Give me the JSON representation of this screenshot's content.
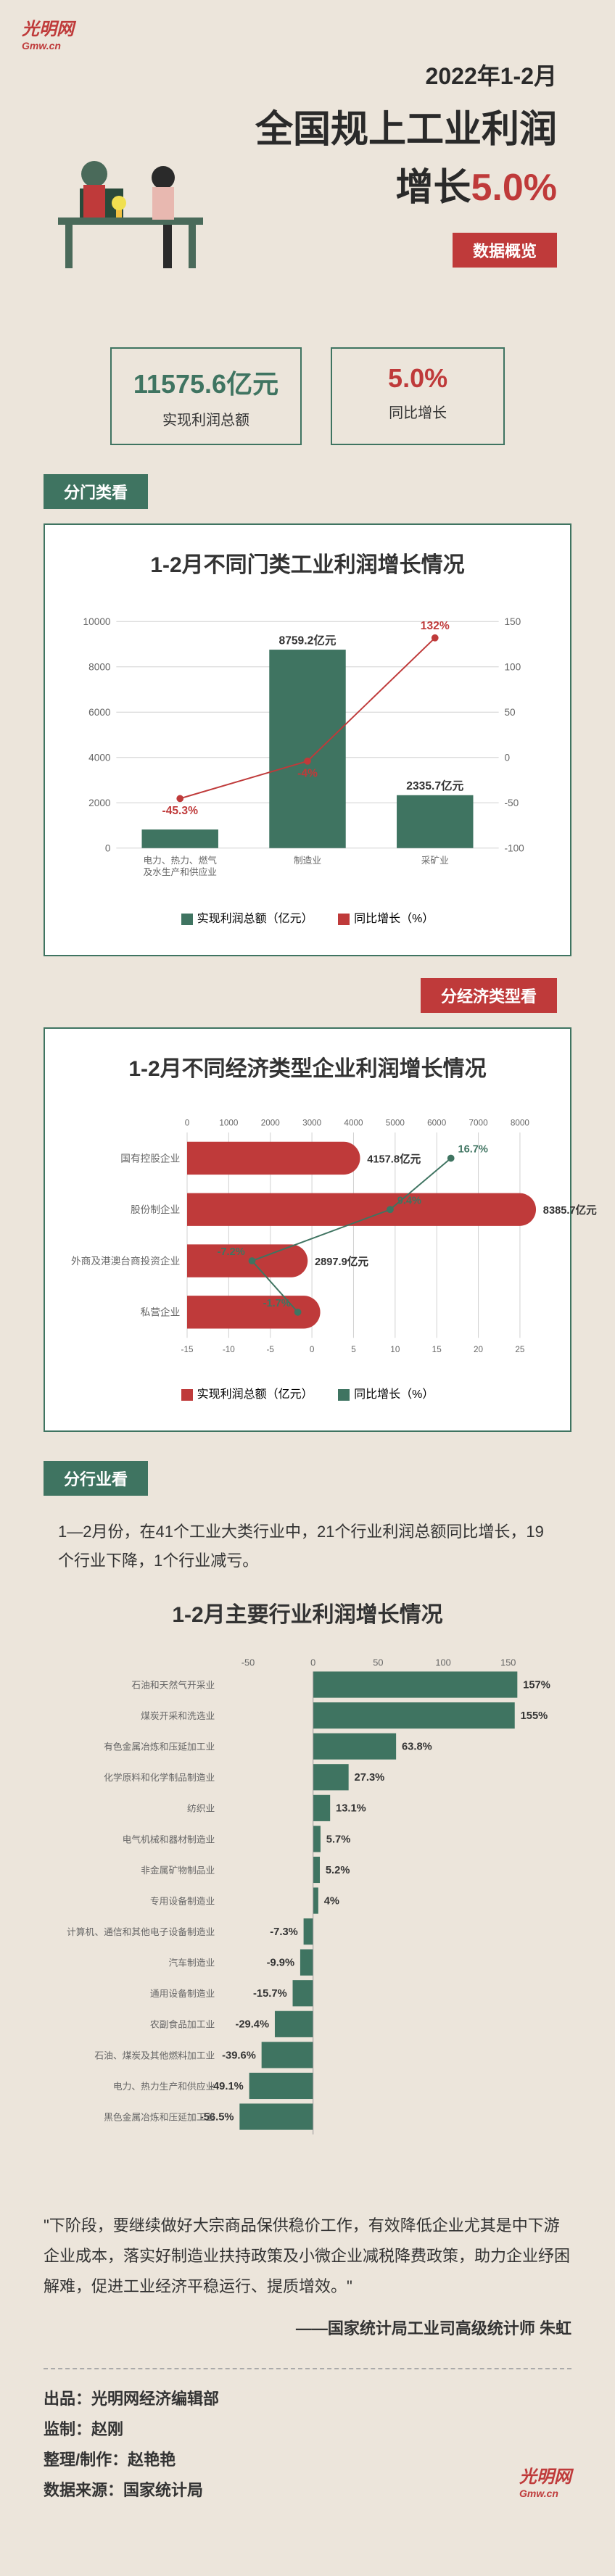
{
  "logo": {
    "cn": "光明网",
    "en": "Gmw.cn"
  },
  "header": {
    "date": "2022年1-2月",
    "line1": "全国规上工业利润",
    "line2_pre": "增长",
    "line2_pct": "5.0%"
  },
  "tag_overview": "数据概览",
  "stats": [
    {
      "val": "11575.6亿元",
      "lbl": "实现利润总额",
      "cls": "green"
    },
    {
      "val": "5.0%",
      "lbl": "同比增长",
      "cls": "red"
    }
  ],
  "tag_category": "分门类看",
  "chart1": {
    "title": "1-2月不同门类工业利润增长情况",
    "categories": [
      "电力、热力、燃气\n及水生产和供应业",
      "制造业",
      "采矿业"
    ],
    "bar_values": [
      820,
      8759.2,
      2335.7
    ],
    "bar_labels": [
      "",
      "8759.2亿元",
      "2335.7亿元"
    ],
    "line_values": [
      -45.3,
      -4,
      132
    ],
    "line_labels": [
      "-45.3%",
      "-4%",
      "132%"
    ],
    "y_ticks": [
      0,
      2000,
      4000,
      6000,
      8000,
      10000
    ],
    "y2_ticks": [
      -100,
      -50,
      0,
      50,
      100,
      150
    ],
    "bar_color": "#3f7461",
    "line_color": "#bf3a3a",
    "legend": [
      "实现利润总额（亿元）",
      "同比增长（%）"
    ]
  },
  "tag_econ": "分经济类型看",
  "chart2": {
    "title": "1-2月不同经济类型企业利润增长情况",
    "categories": [
      "国有控股企业",
      "股份制企业",
      "外商及港澳台商投资企业",
      "私营企业"
    ],
    "bar_values": [
      4157.8,
      8385.7,
      2897.9,
      3200
    ],
    "bar_labels": [
      "4157.8亿元",
      "8385.7亿元",
      "2897.9亿元",
      ""
    ],
    "line_values": [
      16.7,
      9.4,
      -7.2,
      -1.7
    ],
    "line_labels": [
      "16.7%",
      "9.4%",
      "-7.2%",
      "-1.7%"
    ],
    "x_ticks": [
      0,
      1000,
      2000,
      3000,
      4000,
      5000,
      6000,
      7000,
      8000
    ],
    "x2_ticks": [
      -15,
      -10,
      -5,
      0,
      5,
      10,
      15,
      20,
      25
    ],
    "bar_color": "#bf3a3a",
    "line_color": "#3f7461",
    "legend": [
      "实现利润总额（亿元）",
      "同比增长（%）"
    ]
  },
  "tag_industry": "分行业看",
  "industry_text": "1—2月份，在41个工业大类行业中，21个行业利润总额同比增长，19个行业下降，1个行业减亏。",
  "chart3": {
    "title": "1-2月主要行业利润增长情况",
    "categories": [
      "石油和天然气开采业",
      "煤炭开采和洗选业",
      "有色金属冶炼和压延加工业",
      "化学原料和化学制品制造业",
      "纺织业",
      "电气机械和器材制造业",
      "非金属矿物制品业",
      "专用设备制造业",
      "计算机、通信和其他电子设备制造业",
      "汽车制造业",
      "通用设备制造业",
      "农副食品加工业",
      "石油、煤炭及其他燃料加工业",
      "电力、热力生产和供应业",
      "黑色金属冶炼和压延加工业"
    ],
    "values": [
      157,
      155,
      63.8,
      27.3,
      13.1,
      5.7,
      5.2,
      4,
      -7.3,
      -9.9,
      -15.7,
      -29.4,
      -39.6,
      -49.1,
      -56.5
    ],
    "labels": [
      "157%",
      "155%",
      "63.8%",
      "27.3%",
      "13.1%",
      "5.7%",
      "5.2%",
      "4%",
      "-7.3%",
      "-9.9%",
      "-15.7%",
      "-29.4%",
      "-39.6%",
      "-49.1%",
      "-56.5%"
    ],
    "x_ticks": [
      -50,
      0,
      50,
      100,
      150
    ],
    "color": "#3f7461"
  },
  "quote": "\"下阶段，要继续做好大宗商品保供稳价工作，有效降低企业尤其是中下游企业成本，落实好制造业扶持政策及小微企业减税降费政策，助力企业纾困解难，促进工业经济平稳运行、提质增效。\"",
  "quote_attr": "——国家统计局工业司高级统计师 朱虹",
  "credits": {
    "c1": "出品：光明网经济编辑部",
    "c2": "监制：赵刚",
    "c3": "整理/制作：赵艳艳",
    "c4": "数据来源：国家统计局"
  },
  "colors": {
    "green": "#3f7461",
    "red": "#bf3a3a",
    "bg": "#ece5db",
    "grid": "#d0d0d0",
    "text": "#333333"
  }
}
